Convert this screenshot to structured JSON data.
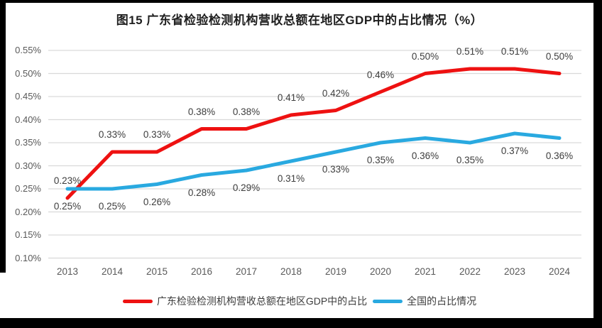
{
  "chart_data": {
    "type": "line",
    "title": "图15  广东省检验检测机构营收总额在地区GDP中的占比情况（%）",
    "xlabel": "",
    "ylabel": "",
    "categories": [
      "2013",
      "2014",
      "2015",
      "2016",
      "2017",
      "2018",
      "2019",
      "2020",
      "2021",
      "2022",
      "2023",
      "2024"
    ],
    "series": [
      {
        "name": "广东检验检测机构营收总额在地区GDP中的占比",
        "color": "#ee1111",
        "values": [
          0.23,
          0.33,
          0.33,
          0.38,
          0.38,
          0.41,
          0.42,
          0.46,
          0.5,
          0.51,
          0.51,
          0.5
        ],
        "labels": [
          "0.23%",
          "0.33%",
          "0.33%",
          "0.38%",
          "0.38%",
          "0.41%",
          "0.42%",
          "0.46%",
          "0.50%",
          "0.51%",
          "0.51%",
          "0.50%"
        ]
      },
      {
        "name": "全国的占比情况",
        "color": "#29a9e0",
        "values": [
          0.25,
          0.25,
          0.26,
          0.28,
          0.29,
          0.31,
          0.33,
          0.35,
          0.36,
          0.35,
          0.37,
          0.36
        ],
        "labels": [
          "0.25%",
          "0.25%",
          "0.26%",
          "0.28%",
          "0.29%",
          "0.31%",
          "0.33%",
          "0.35%",
          "0.36%",
          "0.35%",
          "0.37%",
          "0.36%"
        ]
      }
    ],
    "y_axis": {
      "ticks": [
        "0.55%",
        "0.50%",
        "0.45%",
        "0.40%",
        "0.35%",
        "0.30%",
        "0.25%",
        "0.20%",
        "0.15%",
        "0.10%"
      ],
      "tick_values": [
        0.55,
        0.5,
        0.45,
        0.4,
        0.35,
        0.3,
        0.25,
        0.2,
        0.15,
        0.1
      ],
      "min": 0.1,
      "max": 0.55,
      "step": 0.05
    },
    "grid": true,
    "legend_position": "bottom",
    "colors": {
      "gridline": "#d9d9d9",
      "axis_text": "#595959",
      "label_text": "#3d3d3d",
      "frame": "#000000",
      "background": "#ffffff"
    }
  }
}
